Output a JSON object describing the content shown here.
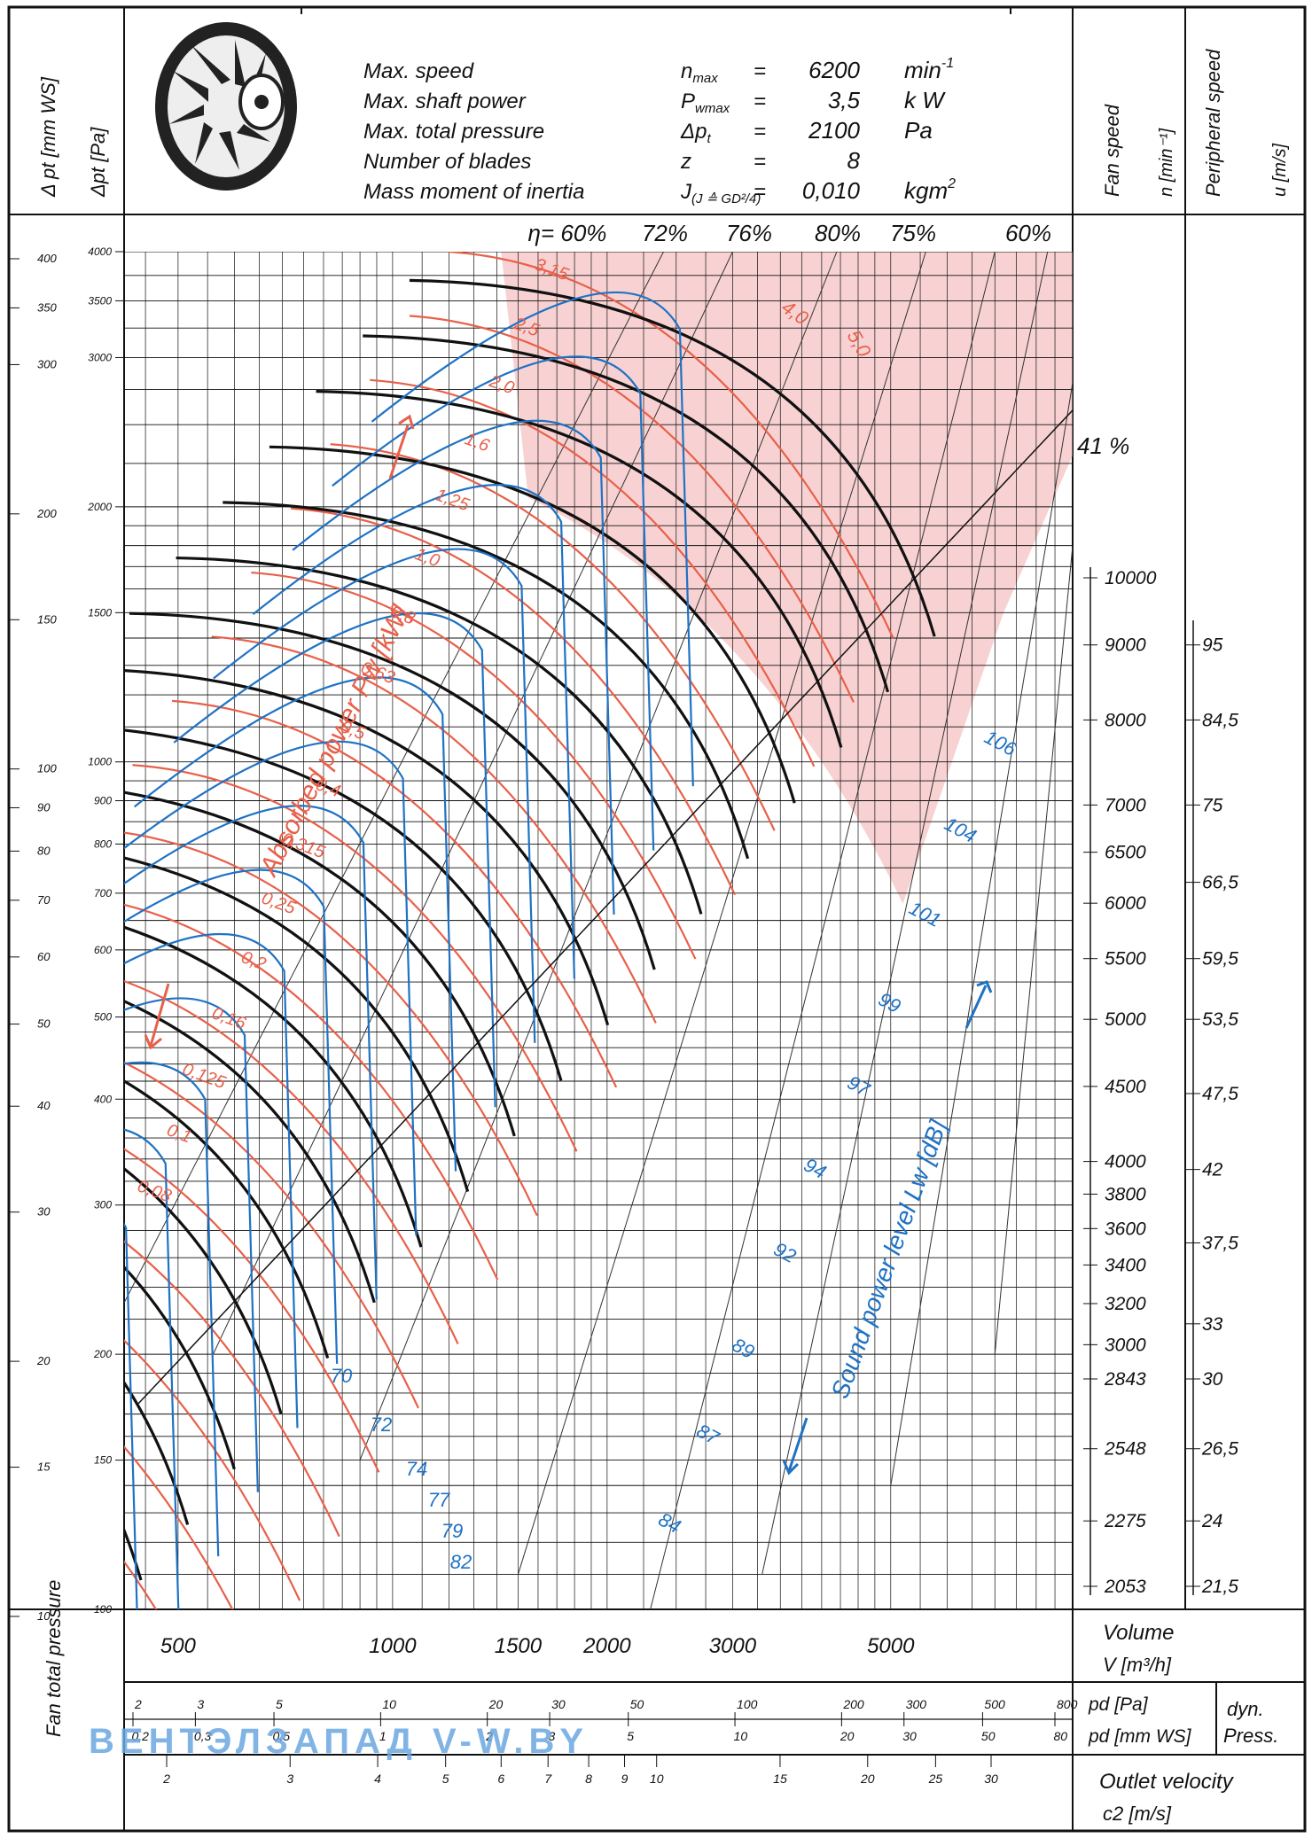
{
  "header": {
    "specs": [
      {
        "label": "Max. speed",
        "symbol": "n",
        "sub": "max",
        "eq": "=",
        "value": "6200",
        "unit": "min",
        "unit_sup": "-1"
      },
      {
        "label": "Max. shaft power",
        "symbol": "P",
        "sub": "wmax",
        "eq": "=",
        "value": "3,5",
        "unit": "k W",
        "unit_sup": ""
      },
      {
        "label": "Max. total pressure",
        "symbol": "Δp",
        "sub": "t",
        "eq": "=",
        "value": "2100",
        "unit": "Pa",
        "unit_sup": ""
      },
      {
        "label": "Number of blades",
        "symbol": "z",
        "sub": "",
        "eq": "=",
        "value": "8",
        "unit": "",
        "unit_sup": ""
      },
      {
        "label": "Mass moment of inertia",
        "symbol": "J",
        "sub": "(J ≙ GD²/4)",
        "eq": "=",
        "value": "0,010",
        "unit": "kgm",
        "unit_sup": "2"
      }
    ],
    "left_labels": {
      "mmws": "Δ pt [mm WS]",
      "pa": "Δpt [Pa]"
    },
    "right_labels": {
      "fan_speed": "Fan speed",
      "n_unit": "n [min⁻¹]",
      "peripheral": "Peripheral speed",
      "u_unit": "u [m/s]"
    }
  },
  "chart_data": {
    "type": "line",
    "title": "",
    "xlabel": "Volume V [m³/h]",
    "ylabel": "Fan total pressure Δpt [Pa]",
    "x_scale": "log",
    "y_scale": "log",
    "xlim": [
      420,
      9000
    ],
    "ylim": [
      100,
      4000
    ],
    "x_ticks": [
      {
        "v": 500,
        "label": "500"
      },
      {
        "v": 1000,
        "label": "1000"
      },
      {
        "v": 1500,
        "label": "1500"
      },
      {
        "v": 2000,
        "label": "2000"
      },
      {
        "v": 3000,
        "label": "3000"
      },
      {
        "v": 5000,
        "label": "5000"
      }
    ],
    "y_ticks_pa": [
      {
        "v": 4000,
        "label": "4000"
      },
      {
        "v": 3500,
        "label": "3500"
      },
      {
        "v": 3000,
        "label": "3000"
      },
      {
        "v": 2000,
        "label": "2000"
      },
      {
        "v": 1500,
        "label": "1500"
      },
      {
        "v": 1000,
        "label": "1000"
      },
      {
        "v": 900,
        "label": "900"
      },
      {
        "v": 800,
        "label": "800"
      },
      {
        "v": 700,
        "label": "700"
      },
      {
        "v": 600,
        "label": "600"
      },
      {
        "v": 500,
        "label": "500"
      },
      {
        "v": 400,
        "label": "400"
      },
      {
        "v": 300,
        "label": "300"
      },
      {
        "v": 200,
        "label": "200"
      },
      {
        "v": 150,
        "label": "150"
      },
      {
        "v": 100,
        "label": "100"
      }
    ],
    "y_ticks_mmws": [
      {
        "v": 400,
        "label": "400"
      },
      {
        "v": 350,
        "label": "350"
      },
      {
        "v": 300,
        "label": "300"
      },
      {
        "v": 200,
        "label": "200"
      },
      {
        "v": 150,
        "label": "150"
      },
      {
        "v": 100,
        "label": "100"
      },
      {
        "v": 90,
        "label": "90"
      },
      {
        "v": 80,
        "label": "80"
      },
      {
        "v": 70,
        "label": "70"
      },
      {
        "v": 60,
        "label": "60"
      },
      {
        "v": 50,
        "label": "50"
      },
      {
        "v": 40,
        "label": "40"
      },
      {
        "v": 30,
        "label": "30"
      },
      {
        "v": 20,
        "label": "20"
      },
      {
        "v": 15,
        "label": "15"
      },
      {
        "v": 10,
        "label": "10"
      }
    ],
    "efficiency_labels": [
      "η= 60%",
      "72%",
      "76%",
      "80%",
      "75%",
      "60%"
    ],
    "efficiency_limit_label": "41 %",
    "absorbed_power_label": "Absorbed power Pw [kW]",
    "absorbed_power_values": [
      "3,15",
      "2,5",
      "2,0",
      "1,6",
      "1,25",
      "1,0",
      "0,8",
      "0,63",
      "0,5",
      "0,4",
      "0,315",
      "0,25",
      "0,2",
      "0,16",
      "0,125",
      "0,1",
      "0,08"
    ],
    "absorbed_power_curve_labels": [
      "4,0",
      "5,0"
    ],
    "sound_power_label": "Sound power level Lw [dB]",
    "sound_power_levels": [
      "70",
      "72",
      "74",
      "77",
      "79",
      "82",
      "84",
      "87",
      "89",
      "92",
      "94",
      "97",
      "99",
      "101",
      "104",
      "106"
    ],
    "fan_speeds": [
      {
        "v": 10000,
        "label": "10000"
      },
      {
        "v": 9000,
        "label": "9000"
      },
      {
        "v": 8000,
        "label": "8000"
      },
      {
        "v": 7000,
        "label": "7000"
      },
      {
        "v": 6500,
        "label": "6500"
      },
      {
        "v": 6000,
        "label": "6000"
      },
      {
        "v": 5500,
        "label": "5500"
      },
      {
        "v": 5000,
        "label": "5000"
      },
      {
        "v": 4500,
        "label": "4500"
      },
      {
        "v": 4000,
        "label": "4000"
      },
      {
        "v": 3800,
        "label": "3800"
      },
      {
        "v": 3600,
        "label": "3600"
      },
      {
        "v": 3400,
        "label": "3400"
      },
      {
        "v": 3200,
        "label": "3200"
      },
      {
        "v": 3000,
        "label": "3000"
      },
      {
        "v": 2843,
        "label": "2843"
      },
      {
        "v": 2548,
        "label": "2548"
      },
      {
        "v": 2275,
        "label": "2275"
      },
      {
        "v": 2053,
        "label": "2053"
      }
    ],
    "peripheral_speeds": [
      "95",
      "84,5",
      "75",
      "66,5",
      "59,5",
      "53,5",
      "47,5",
      "42",
      "37,5",
      "33",
      "30",
      "26,5",
      "24",
      "21,5"
    ],
    "dyn_pressure_pa_ticks": [
      "2",
      "3",
      "5",
      "10",
      "20",
      "30",
      "50",
      "100",
      "200",
      "300",
      "500",
      "800"
    ],
    "dyn_pressure_mmws_ticks": [
      "0,2",
      "0,3",
      "0,5",
      "1",
      "2",
      "3",
      "5",
      "10",
      "20",
      "30",
      "50",
      "80"
    ],
    "outlet_velocity_ticks": [
      "2",
      "3",
      "4",
      "5",
      "6",
      "7",
      "8",
      "9",
      "10",
      "15",
      "20",
      "25",
      "30"
    ]
  },
  "footer": {
    "fan_total_pressure": "Fan total pressure",
    "volume_label": "Volume",
    "volume_unit": "V [m³/h]",
    "pd_pa": "pd [Pa]",
    "pd_mmws": "pd [mm WS]",
    "dyn_press": "dyn. Press.",
    "outlet_velocity": "Outlet velocity",
    "c2_unit": "c2 [m/s]"
  },
  "watermark": "ВЕНТЭЛЗАПАД   V-W.BY",
  "colors": {
    "red": "#e8604a",
    "blue": "#1f72c4",
    "black": "#111111",
    "pink": "#f6c3c3"
  }
}
